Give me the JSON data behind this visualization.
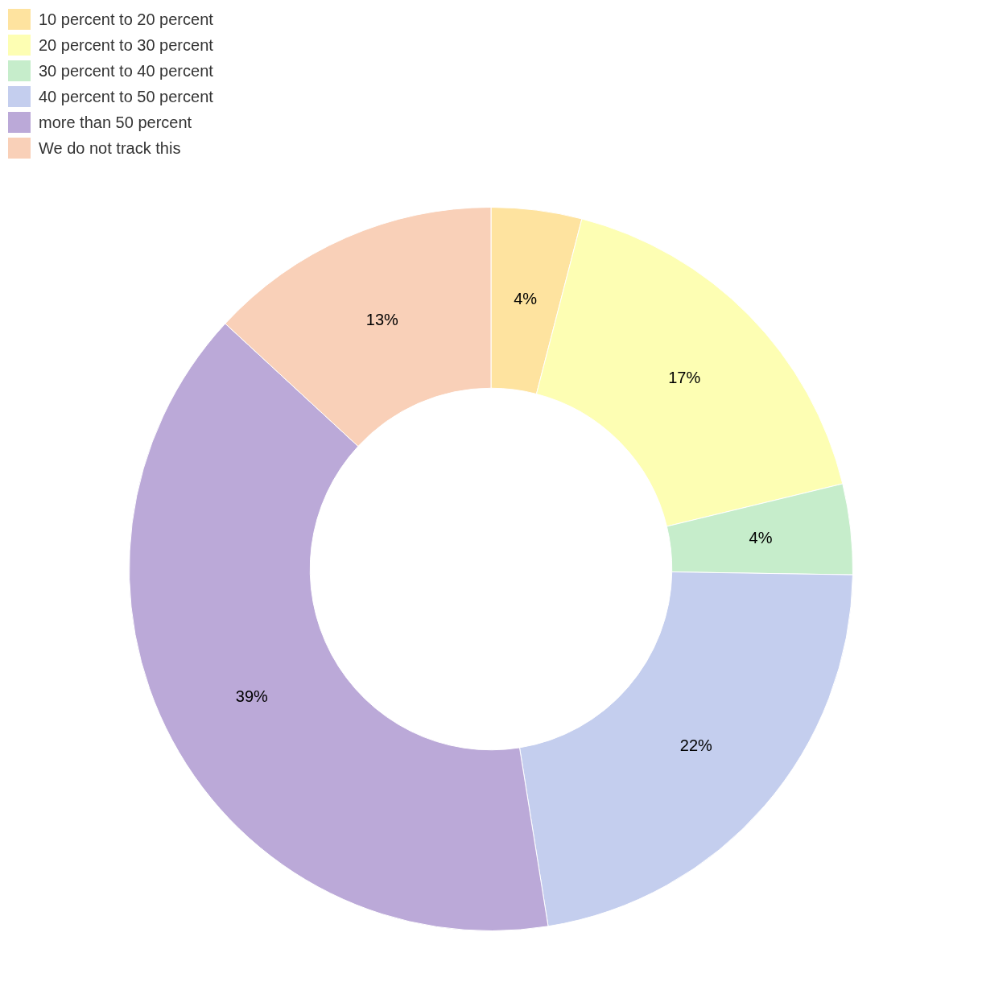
{
  "chart_data": {
    "type": "donut",
    "categories": [
      "10 percent to 20 percent",
      "20 percent to 30 percent",
      "30 percent to 40 percent",
      "40 percent to 50 percent",
      "more than 50 percent",
      "We do not track this"
    ],
    "values": [
      4,
      17,
      4,
      22,
      39,
      13
    ],
    "value_labels": [
      "4%",
      "17%",
      "4%",
      "22%",
      "39%",
      "13%"
    ],
    "colors": [
      "#fee39f",
      "#fdfeb3",
      "#c6edcb",
      "#c4ceee",
      "#bba9d8",
      "#f9d0b8"
    ],
    "legend": "top left"
  }
}
